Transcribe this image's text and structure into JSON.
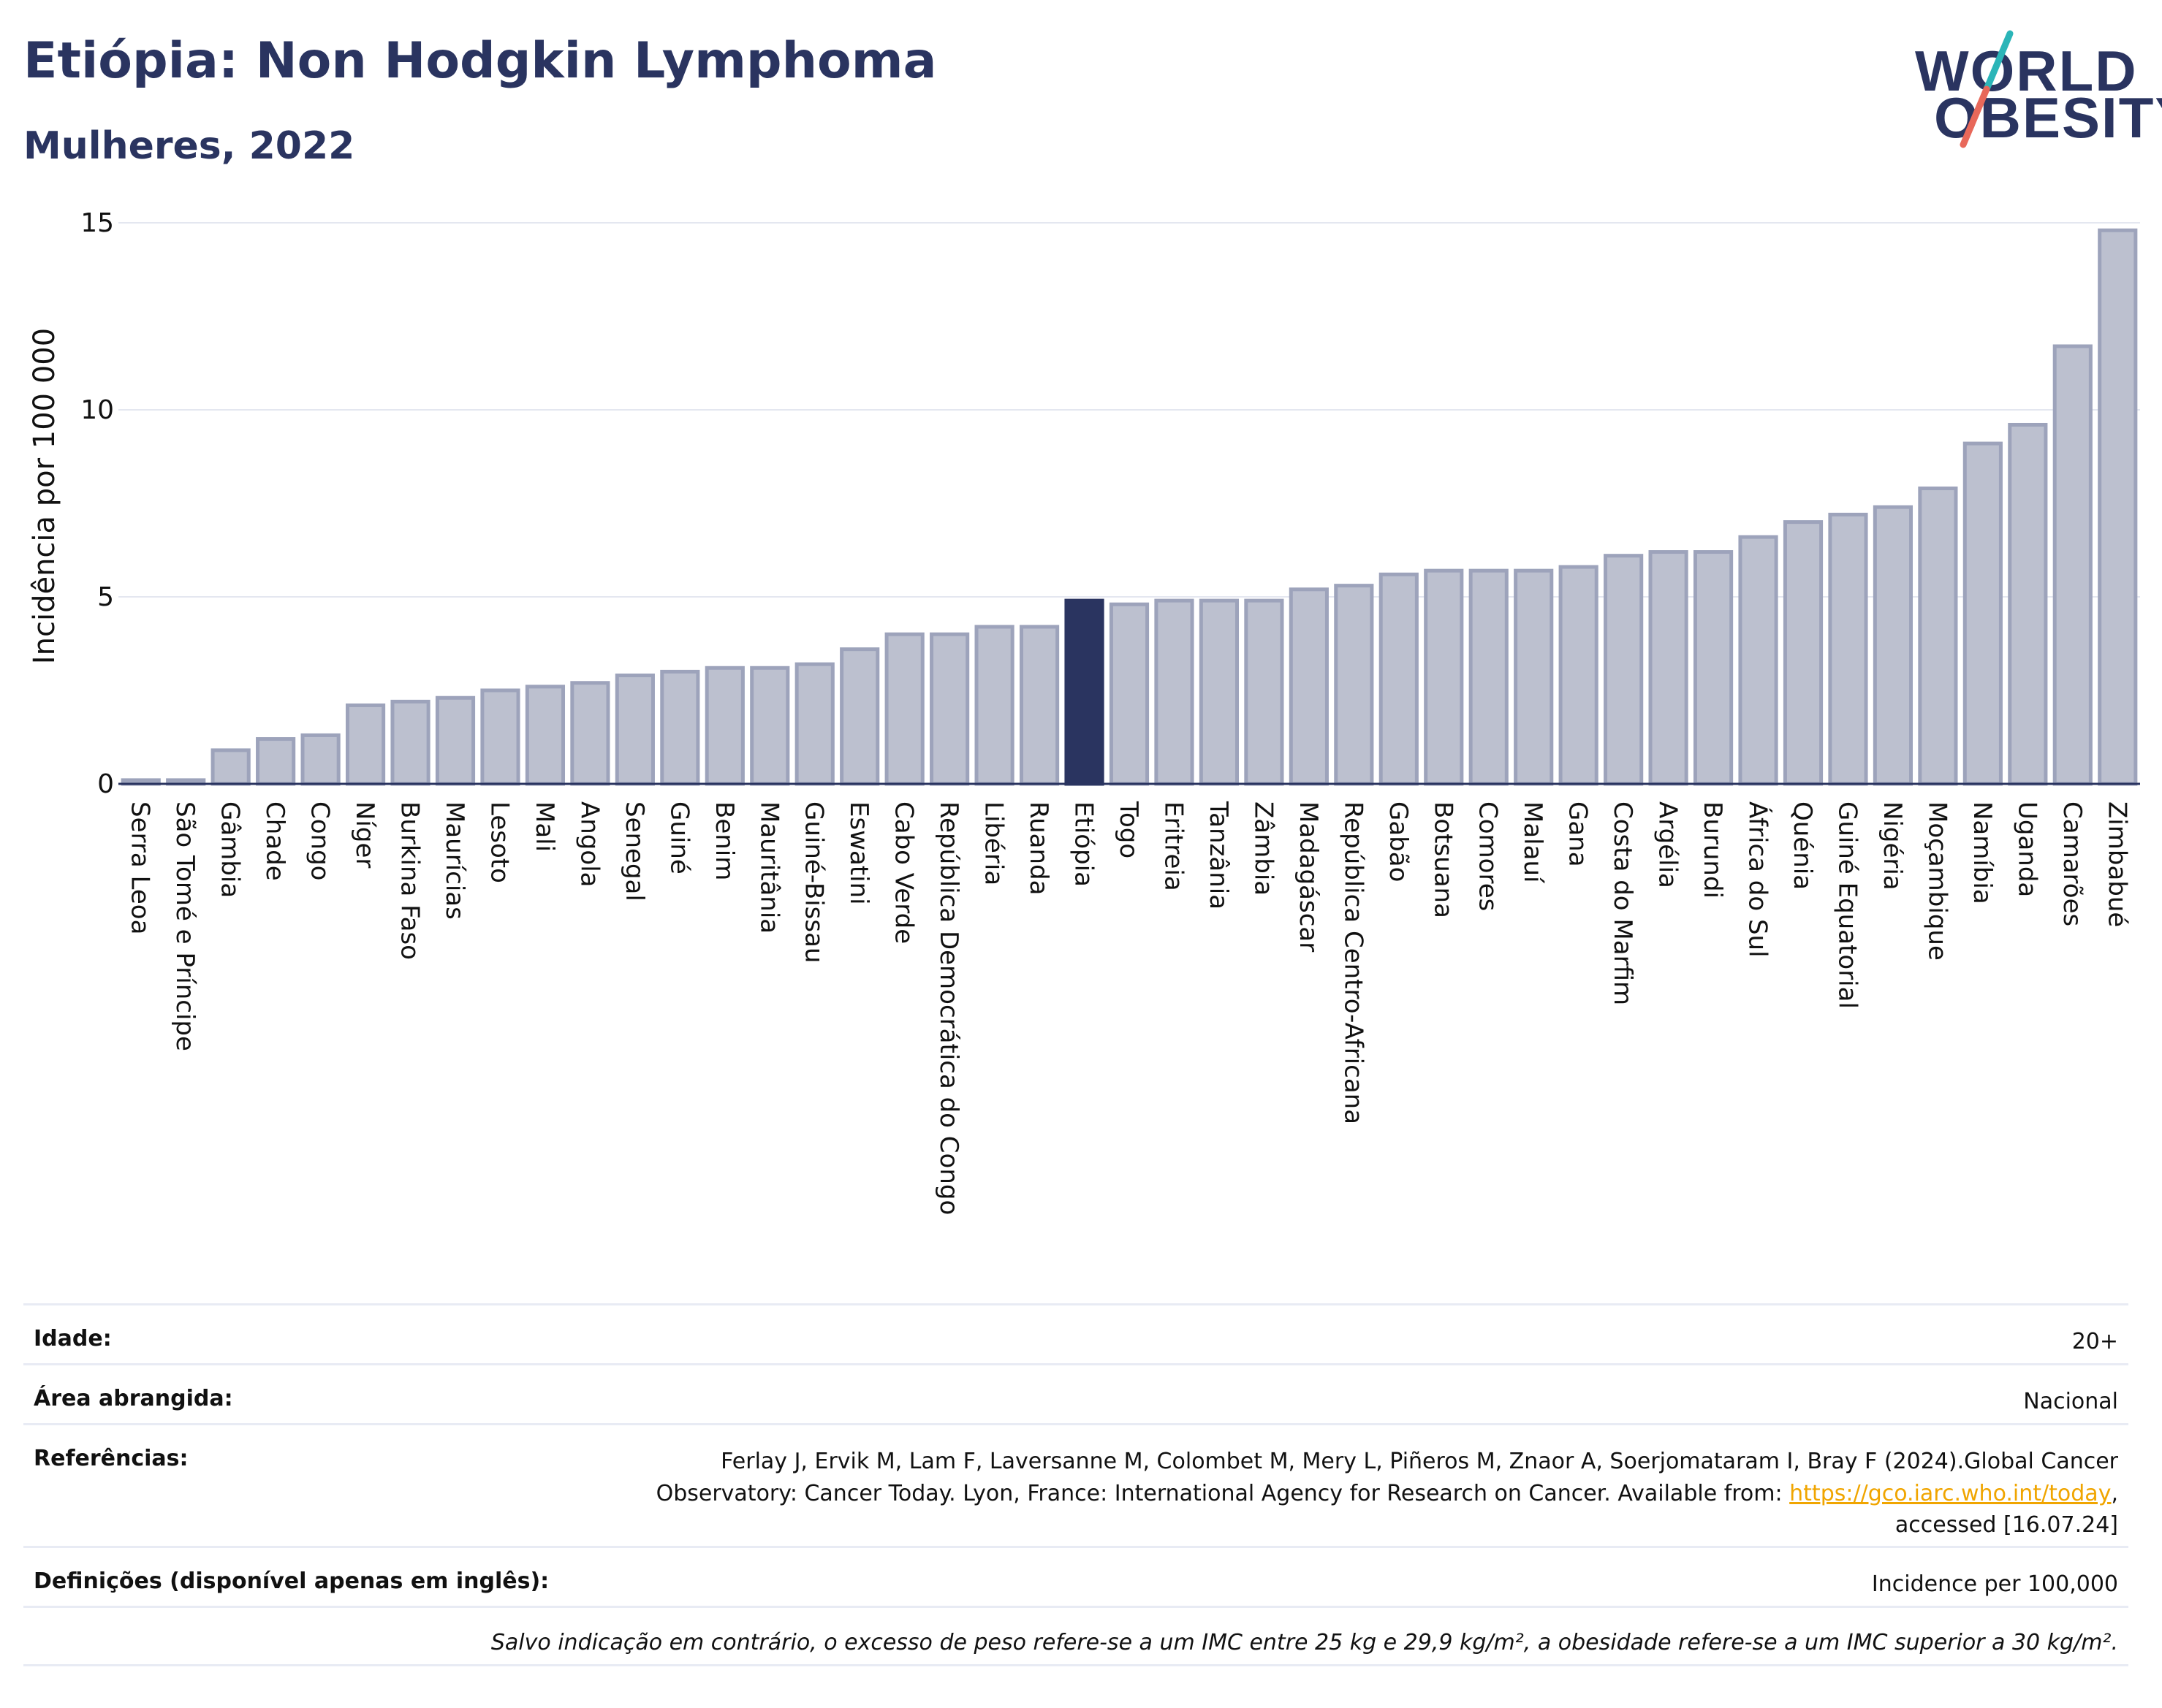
{
  "header": {
    "title": "Etiópia: Non Hodgkin Lymphoma",
    "subtitle": "Mulheres, 2022"
  },
  "logo": {
    "line1": "WORLD",
    "line2": "OBESITY",
    "accent_teal": "#2bb5b8",
    "accent_red": "#e8685a"
  },
  "colors": {
    "bar": "#bcc0cf",
    "bar_border": "#9da3bb",
    "highlight": "#2a3460",
    "grid": "#e4e7f0",
    "axis_text": "#111111"
  },
  "chart_data": {
    "type": "bar",
    "ylabel": "Incidência por 100 000",
    "ylim": [
      0,
      15
    ],
    "yticks": [
      0,
      5,
      10,
      15
    ],
    "grid": true,
    "highlight": "Etiópia",
    "categories": [
      "Serra Leoa",
      "São Tomé e Príncipe",
      "Gâmbia",
      "Chade",
      "Congo",
      "Níger",
      "Burkina Faso",
      "Maurícias",
      "Lesoto",
      "Mali",
      "Angola",
      "Senegal",
      "Guiné",
      "Benim",
      "Mauritânia",
      "Guiné-Bissau",
      "Eswatini",
      "Cabo Verde",
      "República Democrática do Congo",
      "Libéria",
      "Ruanda",
      "Etiópia",
      "Togo",
      "Eritreia",
      "Tanzânia",
      "Zâmbia",
      "Madagáscar",
      "República Centro-Africana",
      "Gabão",
      "Botsuana",
      "Comores",
      "Malauí",
      "Gana",
      "Costa do Marfim",
      "Argélia",
      "Burundi",
      "África do Sul",
      "Quénia",
      "Guiné Equatorial",
      "Nigéria",
      "Moçambique",
      "Namíbia",
      "Uganda",
      "Camarões",
      "Zimbabué"
    ],
    "values": [
      0.1,
      0.1,
      0.9,
      1.2,
      1.3,
      2.1,
      2.2,
      2.3,
      2.5,
      2.6,
      2.7,
      2.9,
      3.0,
      3.1,
      3.1,
      3.2,
      3.6,
      4.0,
      4.0,
      4.2,
      4.2,
      4.9,
      4.8,
      4.9,
      4.9,
      4.9,
      5.2,
      5.3,
      5.6,
      5.7,
      5.7,
      5.7,
      5.8,
      6.1,
      6.2,
      6.2,
      6.6,
      7.0,
      7.2,
      7.4,
      7.9,
      9.1,
      9.6,
      11.7,
      14.8
    ]
  },
  "info": {
    "age_label": "Idade:",
    "age_value": "20+",
    "area_label": "Área abrangida:",
    "area_value": "Nacional",
    "refs_label": "Referências:",
    "refs_line1": "Ferlay J, Ervik M, Lam F, Laversanne M, Colombet M, Mery L, Piñeros M, Znaor A, Soerjomataram I, Bray F (2024).Global Cancer",
    "refs_line2_pre": "Observatory: Cancer Today. Lyon, France: International Agency for Research on Cancer. Available from: ",
    "refs_link": "https://gco.iarc.who.int/today",
    "refs_line2_post": ",",
    "refs_line3": "accessed [16.07.24]",
    "defs_label": "Definições (disponível apenas em inglês):",
    "defs_value": "Incidence per 100,000",
    "note": "Salvo indicação em contrário, o excesso de peso refere-se a um IMC entre 25 kg e 29,9 kg/m², a obesidade refere-se a um IMC superior a 30 kg/m²."
  }
}
